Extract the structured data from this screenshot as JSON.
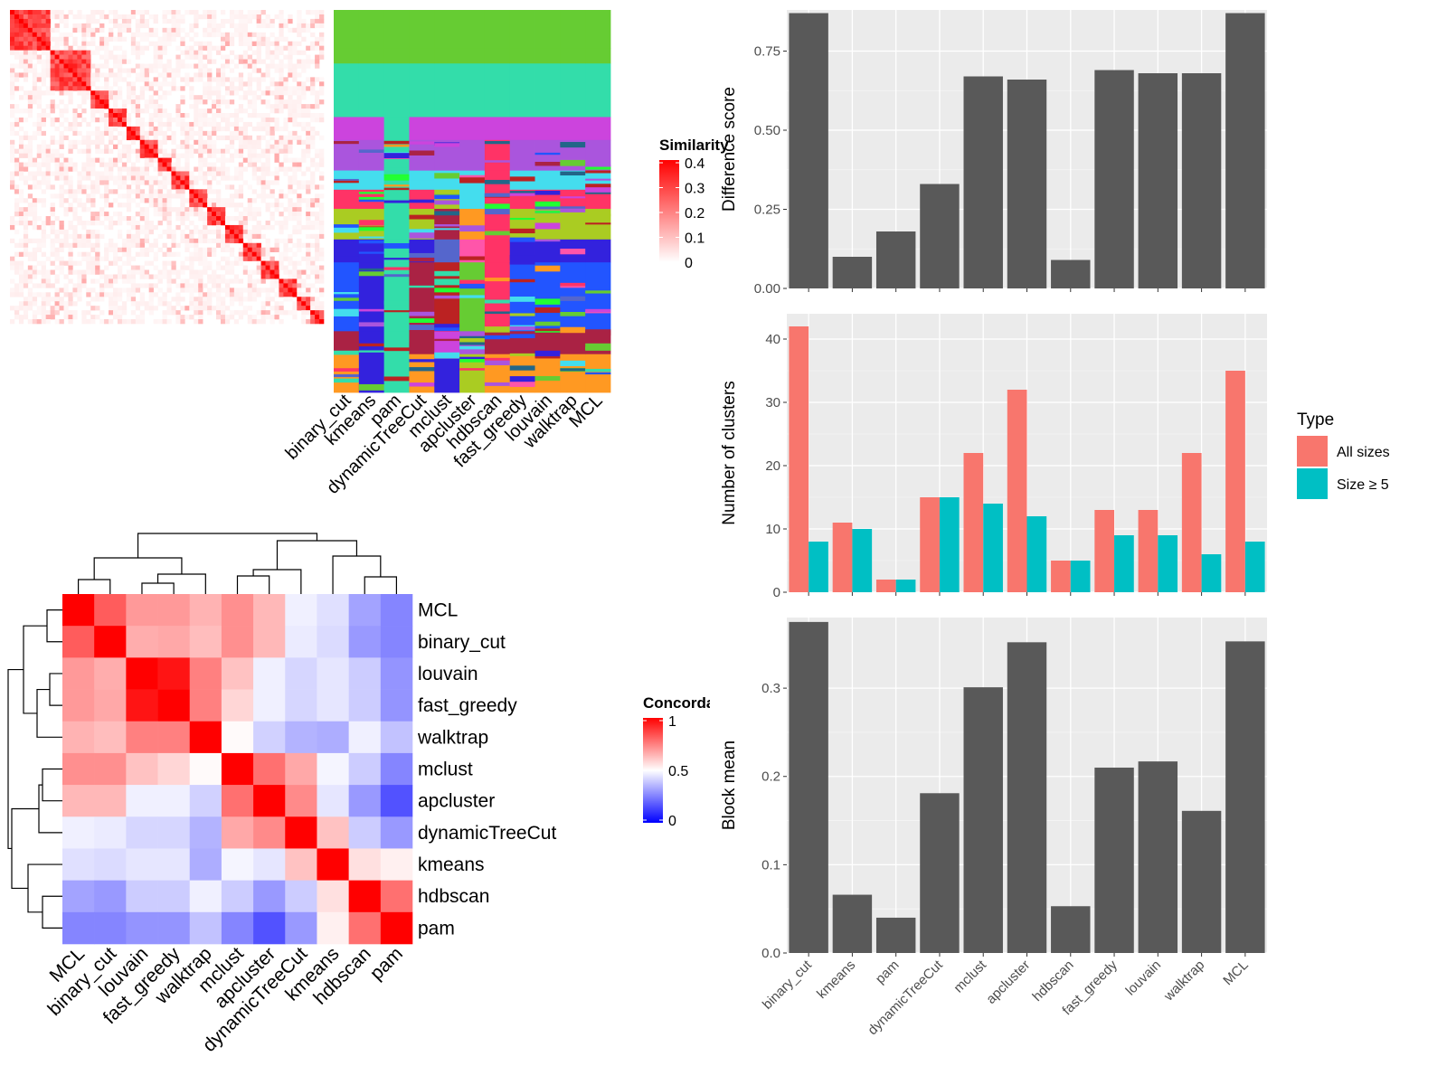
{
  "methods": [
    "binary_cut",
    "kmeans",
    "pam",
    "dynamicTreeCut",
    "mclust",
    "apcluster",
    "hdbscan",
    "fast_greedy",
    "louvain",
    "walktrap",
    "MCL"
  ],
  "chart_data": [
    {
      "id": "similarity_heatmap",
      "type": "heatmap",
      "legend_title": "Similarity",
      "legend_ticks": [
        "0.4",
        "0.3",
        "0.2",
        "0.1",
        "0"
      ],
      "value_range": [
        0,
        0.4
      ],
      "column_labels": [
        "binary_cut",
        "kmeans",
        "pam",
        "dynamicTreeCut",
        "mclust",
        "apcluster",
        "hdbscan",
        "fast_greedy",
        "louvain",
        "walktrap",
        "MCL"
      ],
      "colors": {
        "low": "#ffffff",
        "high": "#ff0000"
      }
    },
    {
      "id": "concordance_heatmap",
      "type": "heatmap",
      "legend_title": "Concordance",
      "legend_ticks": [
        "1",
        "0.5",
        "0"
      ],
      "value_range": [
        0,
        1
      ],
      "row_labels": [
        "MCL",
        "binary_cut",
        "louvain",
        "fast_greedy",
        "walktrap",
        "mclust",
        "apcluster",
        "dynamicTreeCut",
        "kmeans",
        "hdbscan",
        "pam"
      ],
      "col_labels": [
        "MCL",
        "binary_cut",
        "louvain",
        "fast_greedy",
        "walktrap",
        "mclust",
        "apcluster",
        "dynamicTreeCut",
        "kmeans",
        "hdbscan",
        "pam"
      ],
      "values": [
        [
          1.0,
          0.82,
          0.7,
          0.7,
          0.65,
          0.72,
          0.64,
          0.47,
          0.44,
          0.32,
          0.26
        ],
        [
          0.82,
          1.0,
          0.66,
          0.67,
          0.63,
          0.72,
          0.64,
          0.46,
          0.43,
          0.3,
          0.26
        ],
        [
          0.7,
          0.66,
          1.0,
          0.96,
          0.75,
          0.62,
          0.47,
          0.42,
          0.45,
          0.4,
          0.29
        ],
        [
          0.7,
          0.67,
          0.96,
          1.0,
          0.75,
          0.58,
          0.47,
          0.42,
          0.45,
          0.4,
          0.29
        ],
        [
          0.65,
          0.63,
          0.75,
          0.75,
          1.0,
          0.51,
          0.41,
          0.35,
          0.34,
          0.47,
          0.38
        ],
        [
          0.72,
          0.72,
          0.62,
          0.58,
          0.51,
          1.0,
          0.78,
          0.67,
          0.48,
          0.4,
          0.26
        ],
        [
          0.64,
          0.64,
          0.47,
          0.47,
          0.41,
          0.78,
          1.0,
          0.73,
          0.45,
          0.3,
          0.16
        ],
        [
          0.47,
          0.46,
          0.42,
          0.42,
          0.35,
          0.67,
          0.73,
          1.0,
          0.62,
          0.4,
          0.3
        ],
        [
          0.44,
          0.43,
          0.45,
          0.45,
          0.34,
          0.48,
          0.45,
          0.62,
          1.0,
          0.56,
          0.53
        ],
        [
          0.32,
          0.3,
          0.4,
          0.4,
          0.47,
          0.4,
          0.3,
          0.4,
          0.56,
          1.0,
          0.78
        ],
        [
          0.26,
          0.26,
          0.29,
          0.29,
          0.38,
          0.26,
          0.16,
          0.3,
          0.53,
          0.78,
          1.0
        ]
      ],
      "colors": {
        "low": "#0000ff",
        "mid": "#ffffff",
        "high": "#ff0000"
      }
    },
    {
      "id": "difference_score",
      "type": "bar",
      "ylabel": "Difference score",
      "categories": [
        "binary_cut",
        "kmeans",
        "pam",
        "dynamicTreeCut",
        "mclust",
        "apcluster",
        "hdbscan",
        "fast_greedy",
        "louvain",
        "walktrap",
        "MCL"
      ],
      "values": [
        0.87,
        0.1,
        0.18,
        0.33,
        0.67,
        0.66,
        0.09,
        0.69,
        0.68,
        0.68,
        0.87
      ],
      "ylim": [
        0,
        0.88
      ],
      "yticks": [
        0,
        0.25,
        0.5,
        0.75
      ],
      "ytick_labels": [
        "0.00",
        "0.25",
        "0.50",
        "0.75"
      ],
      "bar_color": "#595959"
    },
    {
      "id": "number_of_clusters",
      "type": "bar",
      "ylabel": "Number of clusters",
      "categories": [
        "binary_cut",
        "kmeans",
        "pam",
        "dynamicTreeCut",
        "mclust",
        "apcluster",
        "hdbscan",
        "fast_greedy",
        "louvain",
        "walktrap",
        "MCL"
      ],
      "series": [
        {
          "name": "All sizes",
          "values": [
            42,
            11,
            2,
            15,
            22,
            32,
            5,
            13,
            13,
            22,
            35
          ],
          "color": "#f8766d"
        },
        {
          "name": "Size ≥ 5",
          "values": [
            8,
            10,
            2,
            15,
            14,
            12,
            5,
            9,
            9,
            6,
            8
          ],
          "color": "#00bfc4"
        }
      ],
      "ylim": [
        0,
        44
      ],
      "yticks": [
        0,
        10,
        20,
        30,
        40
      ],
      "legend_title": "Type",
      "legend_position": "right"
    },
    {
      "id": "block_mean",
      "type": "bar",
      "ylabel": "Block mean",
      "categories": [
        "binary_cut",
        "kmeans",
        "pam",
        "dynamicTreeCut",
        "mclust",
        "apcluster",
        "hdbscan",
        "fast_greedy",
        "louvain",
        "walktrap",
        "MCL"
      ],
      "values": [
        0.375,
        0.066,
        0.04,
        0.181,
        0.301,
        0.352,
        0.053,
        0.21,
        0.217,
        0.161,
        0.353
      ],
      "ylim": [
        0,
        0.38
      ],
      "yticks": [
        0,
        0.1,
        0.2,
        0.3
      ],
      "ytick_labels": [
        "0.0",
        "0.1",
        "0.2",
        "0.3"
      ],
      "bar_color": "#595959"
    }
  ]
}
